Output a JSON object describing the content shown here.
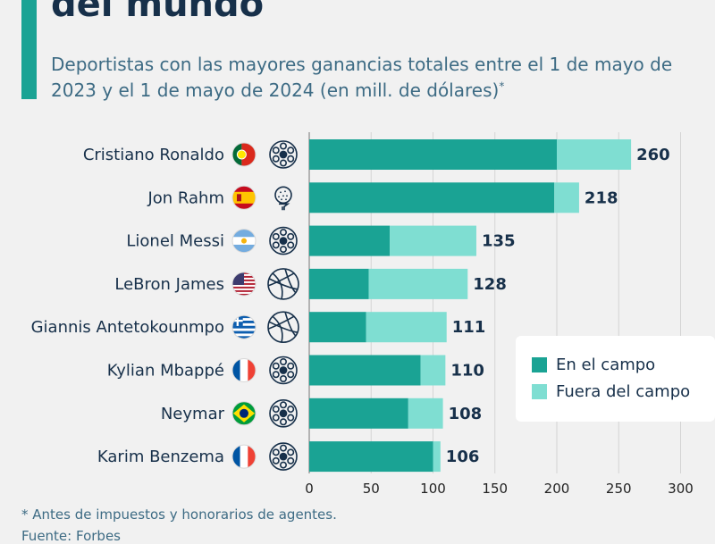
{
  "header": {
    "title": "del mundo",
    "subtitle": "Deportistas con las mayores ganancias totales entre el 1 de mayo de 2023 y el 1 de mayo de 2024 (en mill. de dólares)",
    "subtitle_mark": "*"
  },
  "footer": {
    "footnote": "* Antes de impuestos y honorarios de agentes.",
    "source": "Fuente: Forbes"
  },
  "colors": {
    "on_field": "#1aa394",
    "off_field": "#7fded2",
    "accent": "#1aa394",
    "text_dark": "#17304a",
    "text_muted": "#3d6b84"
  },
  "legend": {
    "on_field": "En el campo",
    "off_field": "Fuera del campo"
  },
  "chart_data": {
    "type": "bar",
    "orientation": "horizontal",
    "stacked": true,
    "title": "del mundo",
    "xlim": [
      0,
      300
    ],
    "xticks": [
      0,
      50,
      100,
      150,
      200,
      250,
      300
    ],
    "grid": true,
    "legend_position": "bottom-right",
    "categories": [
      "Cristiano Ronaldo",
      "Jon Rahm",
      "Lionel Messi",
      "LeBron James",
      "Giannis Antetokounmpo",
      "Kylian Mbappé",
      "Neymar",
      "Karim Benzema"
    ],
    "flags": [
      "portugal-flag",
      "spain-flag",
      "argentina-flag",
      "usa-flag",
      "greece-flag",
      "france-flag",
      "brazil-flag",
      "france-flag"
    ],
    "sports": [
      "soccer-ball",
      "golf-ball",
      "soccer-ball",
      "basketball",
      "basketball",
      "soccer-ball",
      "soccer-ball",
      "soccer-ball"
    ],
    "series": [
      {
        "name": "En el campo",
        "values": [
          200,
          198,
          65,
          48,
          46,
          90,
          80,
          100
        ]
      },
      {
        "name": "Fuera del campo",
        "values": [
          60,
          20,
          70,
          80,
          65,
          20,
          28,
          6
        ]
      }
    ],
    "totals": [
      260,
      218,
      135,
      128,
      111,
      110,
      108,
      106
    ]
  }
}
